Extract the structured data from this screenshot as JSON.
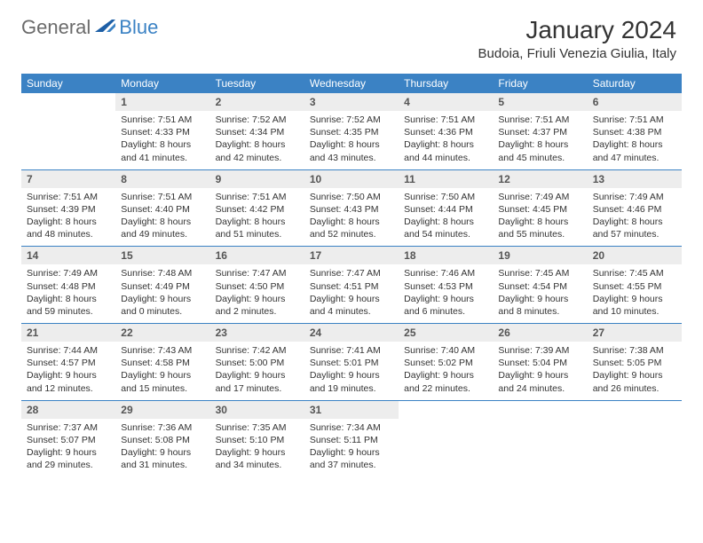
{
  "logo": {
    "text1": "General",
    "text2": "Blue",
    "swoosh_color": "#1d5fa6"
  },
  "title": "January 2024",
  "location": "Budoia, Friuli Venezia Giulia, Italy",
  "colors": {
    "header_bg": "#3b82c4",
    "header_text": "#ffffff",
    "daynum_bg": "#ededed",
    "rule": "#3b82c4",
    "body_text": "#333333"
  },
  "days_of_week": [
    "Sunday",
    "Monday",
    "Tuesday",
    "Wednesday",
    "Thursday",
    "Friday",
    "Saturday"
  ],
  "weeks": [
    [
      {
        "day": "",
        "lines": [
          "",
          "",
          "",
          ""
        ]
      },
      {
        "day": "1",
        "lines": [
          "Sunrise: 7:51 AM",
          "Sunset: 4:33 PM",
          "Daylight: 8 hours",
          "and 41 minutes."
        ]
      },
      {
        "day": "2",
        "lines": [
          "Sunrise: 7:52 AM",
          "Sunset: 4:34 PM",
          "Daylight: 8 hours",
          "and 42 minutes."
        ]
      },
      {
        "day": "3",
        "lines": [
          "Sunrise: 7:52 AM",
          "Sunset: 4:35 PM",
          "Daylight: 8 hours",
          "and 43 minutes."
        ]
      },
      {
        "day": "4",
        "lines": [
          "Sunrise: 7:51 AM",
          "Sunset: 4:36 PM",
          "Daylight: 8 hours",
          "and 44 minutes."
        ]
      },
      {
        "day": "5",
        "lines": [
          "Sunrise: 7:51 AM",
          "Sunset: 4:37 PM",
          "Daylight: 8 hours",
          "and 45 minutes."
        ]
      },
      {
        "day": "6",
        "lines": [
          "Sunrise: 7:51 AM",
          "Sunset: 4:38 PM",
          "Daylight: 8 hours",
          "and 47 minutes."
        ]
      }
    ],
    [
      {
        "day": "7",
        "lines": [
          "Sunrise: 7:51 AM",
          "Sunset: 4:39 PM",
          "Daylight: 8 hours",
          "and 48 minutes."
        ]
      },
      {
        "day": "8",
        "lines": [
          "Sunrise: 7:51 AM",
          "Sunset: 4:40 PM",
          "Daylight: 8 hours",
          "and 49 minutes."
        ]
      },
      {
        "day": "9",
        "lines": [
          "Sunrise: 7:51 AM",
          "Sunset: 4:42 PM",
          "Daylight: 8 hours",
          "and 51 minutes."
        ]
      },
      {
        "day": "10",
        "lines": [
          "Sunrise: 7:50 AM",
          "Sunset: 4:43 PM",
          "Daylight: 8 hours",
          "and 52 minutes."
        ]
      },
      {
        "day": "11",
        "lines": [
          "Sunrise: 7:50 AM",
          "Sunset: 4:44 PM",
          "Daylight: 8 hours",
          "and 54 minutes."
        ]
      },
      {
        "day": "12",
        "lines": [
          "Sunrise: 7:49 AM",
          "Sunset: 4:45 PM",
          "Daylight: 8 hours",
          "and 55 minutes."
        ]
      },
      {
        "day": "13",
        "lines": [
          "Sunrise: 7:49 AM",
          "Sunset: 4:46 PM",
          "Daylight: 8 hours",
          "and 57 minutes."
        ]
      }
    ],
    [
      {
        "day": "14",
        "lines": [
          "Sunrise: 7:49 AM",
          "Sunset: 4:48 PM",
          "Daylight: 8 hours",
          "and 59 minutes."
        ]
      },
      {
        "day": "15",
        "lines": [
          "Sunrise: 7:48 AM",
          "Sunset: 4:49 PM",
          "Daylight: 9 hours",
          "and 0 minutes."
        ]
      },
      {
        "day": "16",
        "lines": [
          "Sunrise: 7:47 AM",
          "Sunset: 4:50 PM",
          "Daylight: 9 hours",
          "and 2 minutes."
        ]
      },
      {
        "day": "17",
        "lines": [
          "Sunrise: 7:47 AM",
          "Sunset: 4:51 PM",
          "Daylight: 9 hours",
          "and 4 minutes."
        ]
      },
      {
        "day": "18",
        "lines": [
          "Sunrise: 7:46 AM",
          "Sunset: 4:53 PM",
          "Daylight: 9 hours",
          "and 6 minutes."
        ]
      },
      {
        "day": "19",
        "lines": [
          "Sunrise: 7:45 AM",
          "Sunset: 4:54 PM",
          "Daylight: 9 hours",
          "and 8 minutes."
        ]
      },
      {
        "day": "20",
        "lines": [
          "Sunrise: 7:45 AM",
          "Sunset: 4:55 PM",
          "Daylight: 9 hours",
          "and 10 minutes."
        ]
      }
    ],
    [
      {
        "day": "21",
        "lines": [
          "Sunrise: 7:44 AM",
          "Sunset: 4:57 PM",
          "Daylight: 9 hours",
          "and 12 minutes."
        ]
      },
      {
        "day": "22",
        "lines": [
          "Sunrise: 7:43 AM",
          "Sunset: 4:58 PM",
          "Daylight: 9 hours",
          "and 15 minutes."
        ]
      },
      {
        "day": "23",
        "lines": [
          "Sunrise: 7:42 AM",
          "Sunset: 5:00 PM",
          "Daylight: 9 hours",
          "and 17 minutes."
        ]
      },
      {
        "day": "24",
        "lines": [
          "Sunrise: 7:41 AM",
          "Sunset: 5:01 PM",
          "Daylight: 9 hours",
          "and 19 minutes."
        ]
      },
      {
        "day": "25",
        "lines": [
          "Sunrise: 7:40 AM",
          "Sunset: 5:02 PM",
          "Daylight: 9 hours",
          "and 22 minutes."
        ]
      },
      {
        "day": "26",
        "lines": [
          "Sunrise: 7:39 AM",
          "Sunset: 5:04 PM",
          "Daylight: 9 hours",
          "and 24 minutes."
        ]
      },
      {
        "day": "27",
        "lines": [
          "Sunrise: 7:38 AM",
          "Sunset: 5:05 PM",
          "Daylight: 9 hours",
          "and 26 minutes."
        ]
      }
    ],
    [
      {
        "day": "28",
        "lines": [
          "Sunrise: 7:37 AM",
          "Sunset: 5:07 PM",
          "Daylight: 9 hours",
          "and 29 minutes."
        ]
      },
      {
        "day": "29",
        "lines": [
          "Sunrise: 7:36 AM",
          "Sunset: 5:08 PM",
          "Daylight: 9 hours",
          "and 31 minutes."
        ]
      },
      {
        "day": "30",
        "lines": [
          "Sunrise: 7:35 AM",
          "Sunset: 5:10 PM",
          "Daylight: 9 hours",
          "and 34 minutes."
        ]
      },
      {
        "day": "31",
        "lines": [
          "Sunrise: 7:34 AM",
          "Sunset: 5:11 PM",
          "Daylight: 9 hours",
          "and 37 minutes."
        ]
      },
      {
        "day": "",
        "lines": [
          "",
          "",
          "",
          ""
        ]
      },
      {
        "day": "",
        "lines": [
          "",
          "",
          "",
          ""
        ]
      },
      {
        "day": "",
        "lines": [
          "",
          "",
          "",
          ""
        ]
      }
    ]
  ]
}
